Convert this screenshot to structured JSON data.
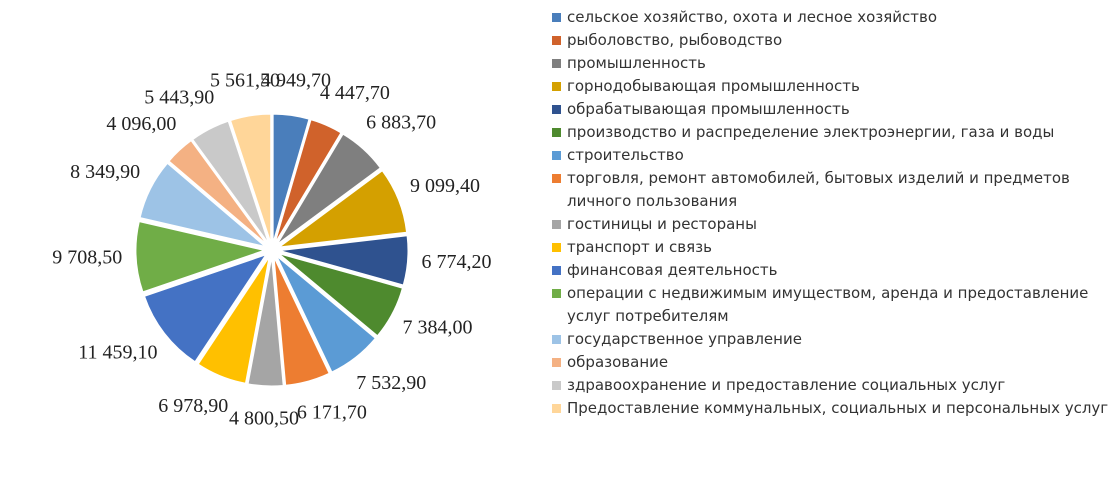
{
  "chart_data": {
    "type": "pie",
    "categories": [
      "сельское хозяйство, охота и лесное хозяйство",
      "рыболовство, рыбоводство",
      "промышленность",
      "горнодобывающая промышленность",
      "обрабатывающая промышленность",
      "производство и распределение электроэнергии, газа и воды",
      "строительство",
      "торговля, ремонт автомобилей, бытовых изделий и предметов личного пользования",
      "гостиницы и рестораны",
      "транспорт и связь",
      "финансовая деятельность",
      "операции с недвижимым имуществом, аренда и предоставление услуг потребителям",
      "государственное управление",
      "образование",
      "здравоохранение и предоставление социальных услуг",
      "Предоставление коммунальных, социальных и персональных услуг"
    ],
    "values": [
      4949.7,
      4447.7,
      6883.7,
      9099.4,
      6774.2,
      7384.0,
      7532.9,
      6171.7,
      4800.5,
      6978.9,
      11459.1,
      9708.5,
      8349.9,
      4096.0,
      5443.9,
      5561.5
    ],
    "value_labels": [
      "4 949,70",
      "4 447,70",
      "6 883,70",
      "9 099,40",
      "6 774,20",
      "7 384,00",
      "7 532,90",
      "6 171,70",
      "4 800,50",
      "6 978,90",
      "11 459,10",
      "9 708,50",
      "8 349,90",
      "4 096,00",
      "5 443,90",
      "5 561,50"
    ],
    "colors": [
      "#4a7ebb",
      "#d0622b",
      "#7f7f7f",
      "#d4a000",
      "#2f528f",
      "#4e8a2e",
      "#5b9bd5",
      "#ed7d31",
      "#a5a5a5",
      "#ffc000",
      "#4472c4",
      "#70ad47",
      "#9dc3e6",
      "#f4b183",
      "#c9c9c9",
      "#ffd699"
    ],
    "legend": "right"
  }
}
